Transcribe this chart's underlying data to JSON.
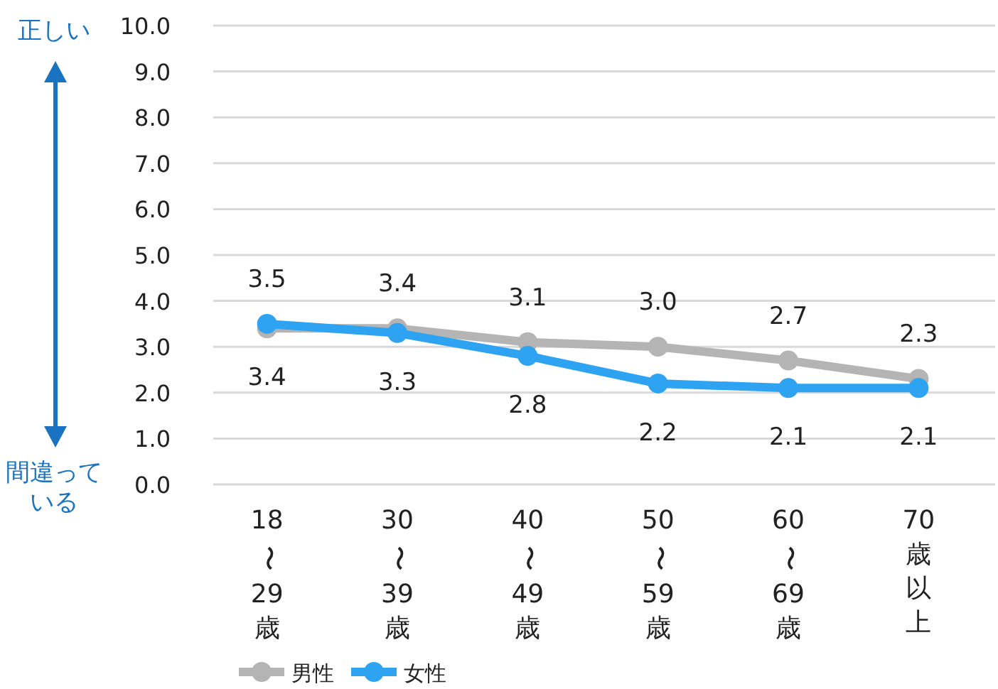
{
  "chart_data": {
    "type": "line",
    "categories": [
      "18〜29歳",
      "30〜39歳",
      "40〜49歳",
      "50〜59歳",
      "60〜69歳",
      "70歳以上"
    ],
    "series": [
      {
        "name": "男性",
        "color": "#b4b4b4",
        "values": [
          3.4,
          3.4,
          3.1,
          3.0,
          2.7,
          2.3
        ],
        "value_labels": [
          "3.4",
          "3.4",
          "3.1",
          "3.0",
          "2.7",
          "2.3"
        ]
      },
      {
        "name": "女性",
        "color": "#2ea3f2",
        "values": [
          3.5,
          3.3,
          2.8,
          2.2,
          2.1,
          2.1
        ],
        "value_labels": [
          "3.5",
          "3.3",
          "2.8",
          "2.2",
          "2.1",
          "2.1"
        ]
      }
    ],
    "ylim": [
      0,
      10
    ],
    "yticks": [
      {
        "value": 0,
        "label": "0.0"
      },
      {
        "value": 1,
        "label": "1.0"
      },
      {
        "value": 2,
        "label": "2.0"
      },
      {
        "value": 3,
        "label": "3.0"
      },
      {
        "value": 4,
        "label": "4.0"
      },
      {
        "value": 5,
        "label": "5.0"
      },
      {
        "value": 6,
        "label": "6.0"
      },
      {
        "value": 7,
        "label": "7.0"
      },
      {
        "value": 8,
        "label": "8.0"
      },
      {
        "value": 9,
        "label": "9.0"
      },
      {
        "value": 10,
        "label": "10.0"
      }
    ],
    "annotations": [
      "正しい",
      "間違っている"
    ],
    "grid": "y",
    "legend": "bottom left",
    "marker": "circle",
    "line_style": "solid"
  }
}
